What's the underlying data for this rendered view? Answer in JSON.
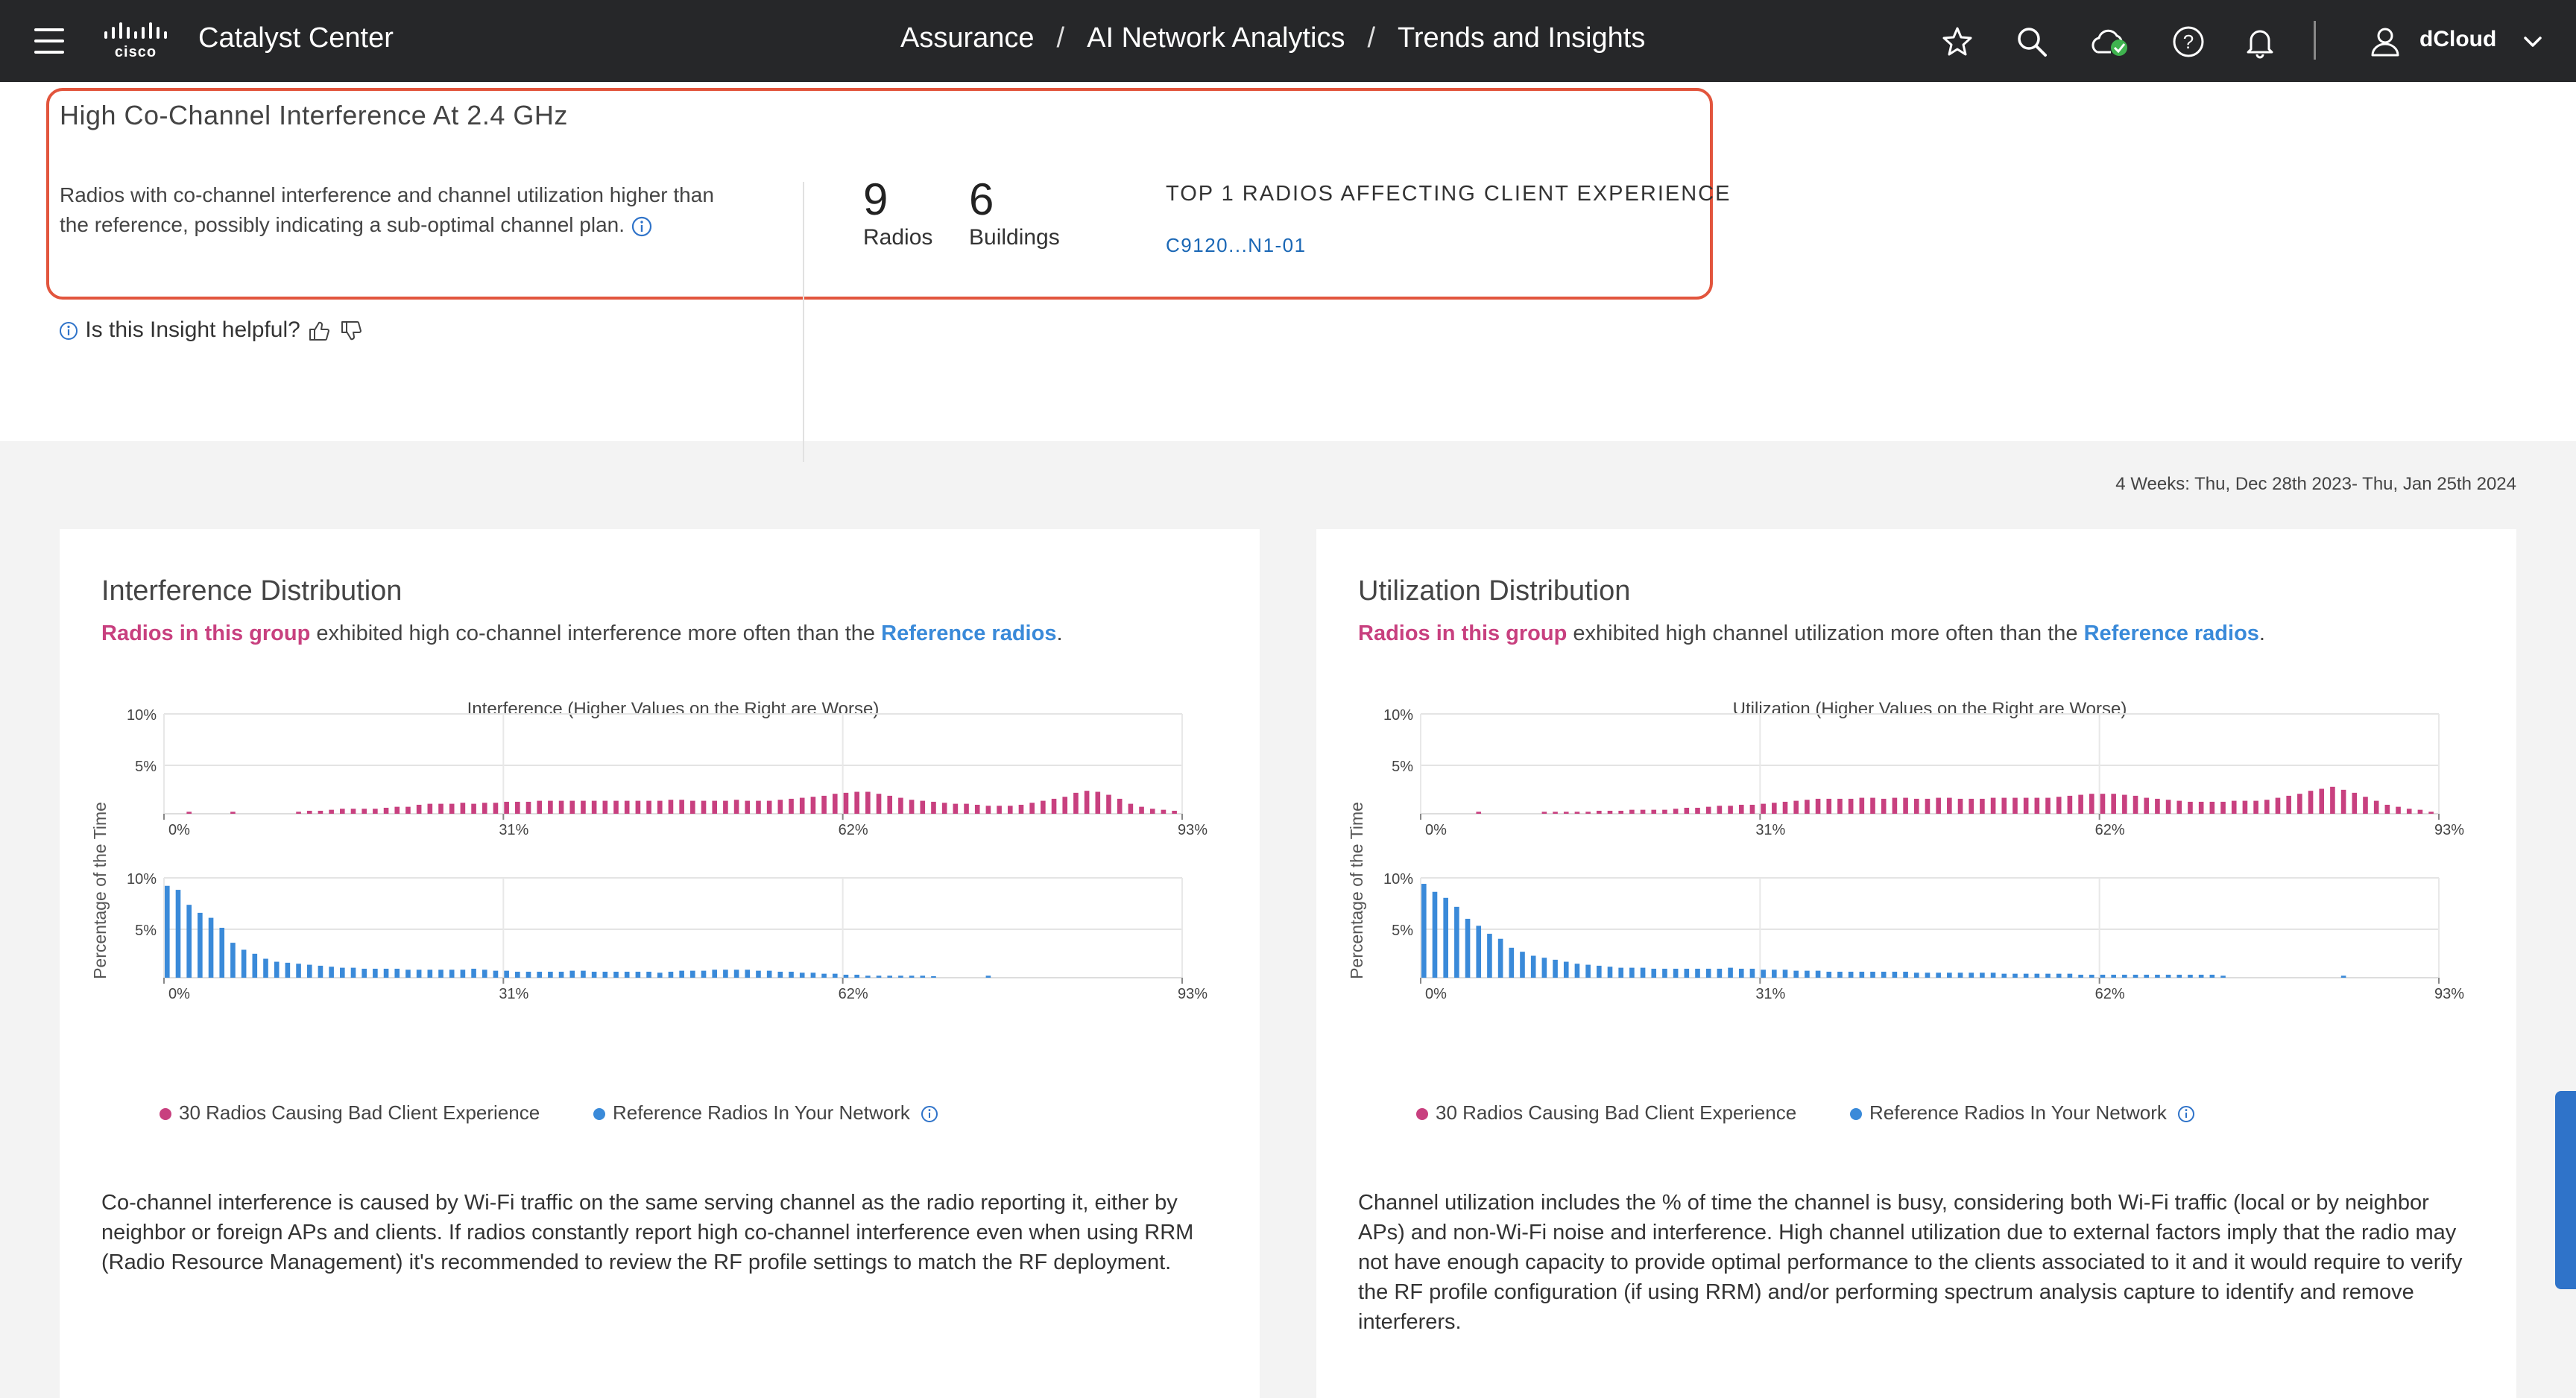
{
  "topbar": {
    "app_title": "Catalyst Center",
    "breadcrumbs": [
      "Assurance",
      "AI Network Analytics",
      "Trends and Insights"
    ],
    "separator": "/",
    "user": "dCloud",
    "icons": [
      "menu-icon",
      "cisco-logo",
      "star-icon",
      "search-icon",
      "cloud-status-icon",
      "help-icon",
      "bell-icon",
      "user-icon",
      "chevron-down-icon"
    ]
  },
  "insight": {
    "title": "High Co-Channel Interference At 2.4 GHz",
    "description": "Radios with co-channel interference and channel utilization higher than the reference, possibly indicating a sub-optimal channel plan.",
    "stats": [
      {
        "value": "9",
        "label": "Radios"
      },
      {
        "value": "6",
        "label": "Buildings"
      }
    ],
    "top_radios_label": "TOP 1 RADIOS AFFECTING CLIENT EXPERIENCE",
    "top_radio": "C9120...N1-01",
    "helpful_prompt": "Is this Insight helpful?"
  },
  "date_range": "4 Weeks: Thu, Dec 28th 2023- Thu, Jan 25th 2024",
  "panels": [
    {
      "title": "Interference Distribution",
      "sub_group": "Radios in this group",
      "sub_mid": " exhibited high co-channel interference more often than the ",
      "sub_ref": "Reference radios",
      "sub_end": ".",
      "legend_group": "30 Radios Causing Bad Client Experience",
      "legend_ref": "Reference Radios In Your Network",
      "footer": "Co-channel interference is caused by Wi-Fi traffic on the same serving channel as the radio reporting it, either by neighbor or foreign APs and clients. If radios constantly report high co-channel interference even when using RRM (Radio Resource Management) it's recommended to review the RF profile settings to match the RF deployment."
    },
    {
      "title": "Utilization Distribution",
      "sub_group": "Radios in this group",
      "sub_mid": " exhibited high channel utilization more often than the ",
      "sub_ref": "Reference radios",
      "sub_end": ".",
      "legend_group": "30 Radios Causing Bad Client Experience",
      "legend_ref": "Reference Radios In Your Network",
      "footer": "Channel utilization includes the % of time the channel is busy, considering both Wi-Fi traffic (local or by neighbor APs) and non-Wi-Fi noise and interference. High channel utilization due to external factors imply that the radio may not have enough capacity to provide optimal performance to the clients associated to it and it would require to verify the RF profile configuration (if using RRM) and/or performing spectrum analysis capture to identify and remove interferers."
    }
  ],
  "chart_data": [
    {
      "type": "bar",
      "title": "Interference (Higher Values on the Right are Worse)",
      "ylabel": "Percentage of the Time",
      "ylim": [
        0,
        10
      ],
      "y_ticks": [
        "10%",
        "5%"
      ],
      "x_ticks": [
        "0%",
        "31%",
        "62%",
        "93%"
      ],
      "xlim": [
        0,
        93
      ],
      "colors": {
        "group": "#c8407f",
        "reference": "#3a8ad9"
      },
      "series": [
        {
          "name": "30 Radios Causing Bad Client Experience",
          "x": [
            0,
            1,
            2,
            3,
            4,
            5,
            6,
            7,
            8,
            9,
            10,
            11,
            12,
            13,
            14,
            15,
            16,
            17,
            18,
            19,
            20,
            21,
            22,
            23,
            24,
            25,
            26,
            27,
            28,
            29,
            30,
            31,
            32,
            33,
            34,
            35,
            36,
            37,
            38,
            39,
            40,
            41,
            42,
            43,
            44,
            45,
            46,
            47,
            48,
            49,
            50,
            51,
            52,
            53,
            54,
            55,
            56,
            57,
            58,
            59,
            60,
            61,
            62,
            63,
            64,
            65,
            66,
            67,
            68,
            69,
            70,
            71,
            72,
            73,
            74,
            75,
            76,
            77,
            78,
            79,
            80,
            81,
            82,
            83,
            84,
            85,
            86,
            87,
            88,
            89,
            90,
            91,
            92
          ],
          "values": [
            0,
            0,
            0.2,
            0,
            0,
            0,
            0.2,
            0,
            0,
            0,
            0,
            0,
            0.2,
            0.3,
            0.3,
            0.4,
            0.5,
            0.5,
            0.5,
            0.5,
            0.6,
            0.7,
            0.7,
            0.9,
            1.0,
            1.0,
            1.0,
            1.1,
            1.0,
            1.1,
            1.1,
            1.2,
            1.2,
            1.2,
            1.3,
            1.3,
            1.3,
            1.3,
            1.3,
            1.3,
            1.3,
            1.3,
            1.3,
            1.3,
            1.3,
            1.3,
            1.4,
            1.4,
            1.3,
            1.3,
            1.3,
            1.3,
            1.4,
            1.3,
            1.3,
            1.3,
            1.4,
            1.5,
            1.6,
            1.7,
            1.8,
            2.0,
            2.1,
            2.2,
            2.2,
            2.0,
            1.8,
            1.6,
            1.4,
            1.3,
            1.2,
            1.1,
            1.0,
            1.0,
            0.9,
            0.8,
            0.8,
            0.8,
            0.9,
            1.1,
            1.3,
            1.5,
            1.7,
            2.1,
            2.3,
            2.2,
            1.9,
            1.5,
            1.0,
            0.7,
            0.5,
            0.4,
            0.3
          ]
        },
        {
          "name": "Reference Radios In Your Network",
          "x": [
            0,
            1,
            2,
            3,
            4,
            5,
            6,
            7,
            8,
            9,
            10,
            11,
            12,
            13,
            14,
            15,
            16,
            17,
            18,
            19,
            20,
            21,
            22,
            23,
            24,
            25,
            26,
            27,
            28,
            29,
            30,
            31,
            32,
            33,
            34,
            35,
            36,
            37,
            38,
            39,
            40,
            41,
            42,
            43,
            44,
            45,
            46,
            47,
            48,
            49,
            50,
            51,
            52,
            53,
            54,
            55,
            56,
            57,
            58,
            59,
            60,
            61,
            62,
            63,
            64,
            65,
            66,
            67,
            68,
            69,
            70,
            75
          ],
          "values": [
            9.2,
            8.8,
            7.3,
            6.5,
            6.0,
            5.0,
            3.5,
            2.8,
            2.4,
            1.9,
            1.6,
            1.5,
            1.4,
            1.3,
            1.2,
            1.1,
            1.0,
            1.0,
            0.9,
            0.9,
            0.9,
            0.9,
            0.8,
            0.8,
            0.8,
            0.8,
            0.8,
            0.8,
            0.9,
            0.8,
            0.7,
            0.7,
            0.6,
            0.6,
            0.6,
            0.6,
            0.6,
            0.7,
            0.7,
            0.6,
            0.6,
            0.6,
            0.6,
            0.6,
            0.6,
            0.5,
            0.6,
            0.7,
            0.7,
            0.7,
            0.8,
            0.8,
            0.8,
            0.8,
            0.7,
            0.7,
            0.6,
            0.6,
            0.5,
            0.5,
            0.4,
            0.4,
            0.3,
            0.3,
            0.2,
            0.2,
            0.2,
            0.2,
            0.2,
            0.2,
            0.1,
            0.2
          ]
        }
      ]
    },
    {
      "type": "bar",
      "title": "Utilization (Higher Values on the Right are Worse)",
      "ylabel": "Percentage of the Time",
      "ylim": [
        0,
        10
      ],
      "y_ticks": [
        "10%",
        "5%"
      ],
      "x_ticks": [
        "0%",
        "31%",
        "62%",
        "93%"
      ],
      "xlim": [
        0,
        93
      ],
      "colors": {
        "group": "#c8407f",
        "reference": "#3a8ad9"
      },
      "series": [
        {
          "name": "30 Radios Causing Bad Client Experience",
          "x": [
            0,
            1,
            2,
            3,
            4,
            5,
            6,
            7,
            8,
            9,
            10,
            11,
            12,
            13,
            14,
            15,
            16,
            17,
            18,
            19,
            20,
            21,
            22,
            23,
            24,
            25,
            26,
            27,
            28,
            29,
            30,
            31,
            32,
            33,
            34,
            35,
            36,
            37,
            38,
            39,
            40,
            41,
            42,
            43,
            44,
            45,
            46,
            47,
            48,
            49,
            50,
            51,
            52,
            53,
            54,
            55,
            56,
            57,
            58,
            59,
            60,
            61,
            62,
            63,
            64,
            65,
            66,
            67,
            68,
            69,
            70,
            71,
            72,
            73,
            74,
            75,
            76,
            77,
            78,
            79,
            80,
            81,
            82,
            83,
            84,
            85,
            86,
            87,
            88,
            89,
            90,
            91,
            92
          ],
          "values": [
            0,
            0,
            0,
            0,
            0,
            0.2,
            0,
            0,
            0,
            0,
            0,
            0.2,
            0.2,
            0.2,
            0.2,
            0.2,
            0.3,
            0.3,
            0.3,
            0.4,
            0.4,
            0.4,
            0.4,
            0.5,
            0.6,
            0.6,
            0.7,
            0.8,
            0.8,
            0.9,
            0.9,
            1.0,
            1.1,
            1.2,
            1.3,
            1.4,
            1.5,
            1.5,
            1.5,
            1.5,
            1.6,
            1.6,
            1.5,
            1.6,
            1.6,
            1.5,
            1.5,
            1.6,
            1.6,
            1.5,
            1.5,
            1.5,
            1.6,
            1.6,
            1.6,
            1.6,
            1.6,
            1.6,
            1.7,
            1.8,
            1.9,
            2.0,
            2.0,
            2.0,
            1.9,
            1.8,
            1.6,
            1.5,
            1.4,
            1.3,
            1.2,
            1.2,
            1.2,
            1.2,
            1.3,
            1.3,
            1.3,
            1.4,
            1.6,
            1.8,
            2.0,
            2.3,
            2.5,
            2.7,
            2.4,
            2.1,
            1.7,
            1.3,
            0.9,
            0.7,
            0.5,
            0.4,
            0.2
          ]
        },
        {
          "name": "Reference Radios In Your Network",
          "x": [
            0,
            1,
            2,
            3,
            4,
            5,
            6,
            7,
            8,
            9,
            10,
            11,
            12,
            13,
            14,
            15,
            16,
            17,
            18,
            19,
            20,
            21,
            22,
            23,
            24,
            25,
            26,
            27,
            28,
            29,
            30,
            31,
            32,
            33,
            34,
            35,
            36,
            37,
            38,
            39,
            40,
            41,
            42,
            43,
            44,
            45,
            46,
            47,
            48,
            49,
            50,
            51,
            52,
            53,
            54,
            55,
            56,
            57,
            58,
            59,
            60,
            61,
            62,
            63,
            64,
            65,
            66,
            67,
            68,
            69,
            70,
            71,
            72,
            73,
            84
          ],
          "values": [
            9.4,
            8.6,
            8.0,
            7.1,
            5.9,
            5.2,
            4.4,
            3.9,
            3.0,
            2.6,
            2.2,
            2.0,
            1.8,
            1.6,
            1.4,
            1.3,
            1.2,
            1.1,
            1.0,
            1.0,
            1.0,
            0.9,
            0.9,
            0.9,
            0.9,
            0.9,
            0.9,
            0.9,
            1.0,
            0.9,
            0.9,
            0.8,
            0.8,
            0.8,
            0.7,
            0.7,
            0.7,
            0.6,
            0.6,
            0.6,
            0.6,
            0.6,
            0.6,
            0.6,
            0.6,
            0.5,
            0.5,
            0.5,
            0.5,
            0.5,
            0.5,
            0.5,
            0.5,
            0.4,
            0.4,
            0.4,
            0.4,
            0.4,
            0.4,
            0.4,
            0.3,
            0.3,
            0.3,
            0.3,
            0.3,
            0.3,
            0.3,
            0.3,
            0.3,
            0.3,
            0.3,
            0.3,
            0.3,
            0.2,
            0.2
          ]
        }
      ]
    }
  ]
}
